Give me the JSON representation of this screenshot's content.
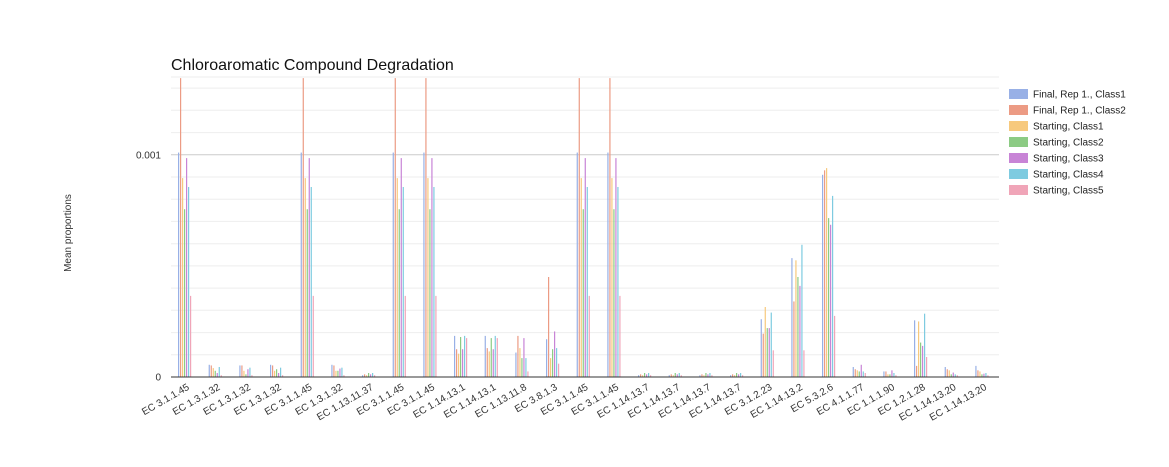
{
  "chart_data": {
    "type": "bar",
    "title": "Chloroaromatic Compound Degradation",
    "xlabel": "",
    "ylabel": "Mean proportions",
    "y_ticks": [
      {
        "value": 0,
        "label": "0"
      },
      {
        "value": 0.001,
        "label": "0.001"
      }
    ],
    "ylim": [
      0,
      0.00135
    ],
    "grid": true,
    "legend_position": "right",
    "categories": [
      "EC 3.1.1.45",
      "EC 1.3.1.32",
      "EC 1.3.1.32",
      "EC 1.3.1.32",
      "EC 3.1.1.45",
      "EC 1.3.1.32",
      "EC 1.13.11.37",
      "EC 3.1.1.45",
      "EC 3.1.1.45",
      "EC 1.14.13.1",
      "EC 1.14.13.1",
      "EC 1.13.11.8",
      "EC 3.8.1.3",
      "EC 3.1.1.45",
      "EC 3.1.1.45",
      "EC 1.14.13.7",
      "EC 1.14.13.7",
      "EC 1.14.13.7",
      "EC 1.14.13.7",
      "EC 3.1.2.23",
      "EC 1.14.13.2",
      "EC 5.3.2.6",
      "EC 4.1.1.77",
      "EC 1.1.1.90",
      "EC 1.2.1.28",
      "EC 1.14.13.20",
      "EC 1.14.13.20"
    ],
    "series": [
      {
        "name": "Final, Rep 1., Class1",
        "color": "#98b0e6",
        "values": [
          0.00101,
          5.5e-05,
          5.2e-05,
          5.5e-05,
          0.00101,
          5.5e-05,
          8e-06,
          0.00101,
          0.00101,
          0.000185,
          0.000185,
          0.00011,
          0.00017,
          0.00101,
          0.00101,
          8e-06,
          8e-06,
          8e-06,
          8e-06,
          0.00026,
          0.000535,
          0.00091,
          4.5e-05,
          2.5e-05,
          0.000255,
          4.5e-05,
          5e-05
        ]
      },
      {
        "name": "Final, Rep 1., Class2",
        "color": "#ec9b84",
        "values": [
          0.001345,
          5.2e-05,
          5.2e-05,
          5.2e-05,
          0.001345,
          5.2e-05,
          1.2e-05,
          0.001345,
          0.001345,
          0.000125,
          0.00013,
          0.000185,
          0.00045,
          0.001345,
          0.001345,
          1.2e-05,
          1.2e-05,
          1.2e-05,
          1.2e-05,
          0.000195,
          0.00034,
          0.00093,
          3.5e-05,
          2.5e-05,
          5e-05,
          3.5e-05,
          3e-05
        ]
      },
      {
        "name": "Starting, Class1",
        "color": "#f7c97d",
        "values": [
          0.000895,
          4e-05,
          2.8e-05,
          2.8e-05,
          0.000895,
          2.8e-05,
          8e-06,
          0.000895,
          0.000895,
          0.000105,
          0.000115,
          0.00013,
          8.5e-05,
          0.000895,
          0.000895,
          8e-06,
          8e-06,
          8e-06,
          8e-06,
          0.000315,
          0.000525,
          0.00094,
          3e-05,
          1.2e-05,
          0.00025,
          3e-05,
          2.5e-05
        ]
      },
      {
        "name": "Starting, Class2",
        "color": "#8ccb84",
        "values": [
          0.000755,
          2.8e-05,
          1.2e-05,
          3.5e-05,
          0.000755,
          2.8e-05,
          1.8e-05,
          0.000755,
          0.000755,
          0.00018,
          0.000175,
          8.5e-05,
          0.000125,
          0.000755,
          0.000755,
          1.8e-05,
          1.8e-05,
          1.8e-05,
          1.8e-05,
          0.00022,
          0.00045,
          0.000715,
          2.5e-05,
          1.2e-05,
          0.000155,
          1.2e-05,
          1.2e-05
        ]
      },
      {
        "name": "Starting, Class3",
        "color": "#c884d6",
        "values": [
          0.000985,
          1.8e-05,
          3.5e-05,
          1.8e-05,
          0.000985,
          3.8e-05,
          1.2e-05,
          0.000985,
          0.000985,
          0.000125,
          0.000125,
          0.000175,
          0.000205,
          0.000985,
          0.000985,
          1.2e-05,
          1.2e-05,
          1.2e-05,
          1.2e-05,
          0.00022,
          0.00041,
          0.000685,
          5.5e-05,
          3e-05,
          0.00014,
          2e-05,
          1.5e-05
        ]
      },
      {
        "name": "Starting, Class4",
        "color": "#7ecbe0",
        "values": [
          0.000855,
          4.5e-05,
          4.2e-05,
          4.2e-05,
          0.000855,
          4.2e-05,
          1.8e-05,
          0.000855,
          0.000855,
          0.000185,
          0.000185,
          8.5e-05,
          0.00013,
          0.000855,
          0.000855,
          1.8e-05,
          1.8e-05,
          1.8e-05,
          1.8e-05,
          0.00029,
          0.000595,
          0.000815,
          2.5e-05,
          1.8e-05,
          0.000285,
          1.2e-05,
          1.8e-05
        ]
      },
      {
        "name": "Starting, Class5",
        "color": "#f0a5b8",
        "values": [
          0.000365,
          8e-06,
          8e-06,
          8e-06,
          0.000365,
          8e-06,
          8e-06,
          0.000365,
          0.000365,
          0.000175,
          0.000175,
          2.5e-05,
          6e-05,
          0.000365,
          0.000365,
          8e-06,
          8e-06,
          8e-06,
          8e-06,
          0.00012,
          0.00012,
          0.000275,
          1.8e-05,
          8e-06,
          9e-05,
          8e-06,
          8e-06
        ]
      }
    ]
  }
}
